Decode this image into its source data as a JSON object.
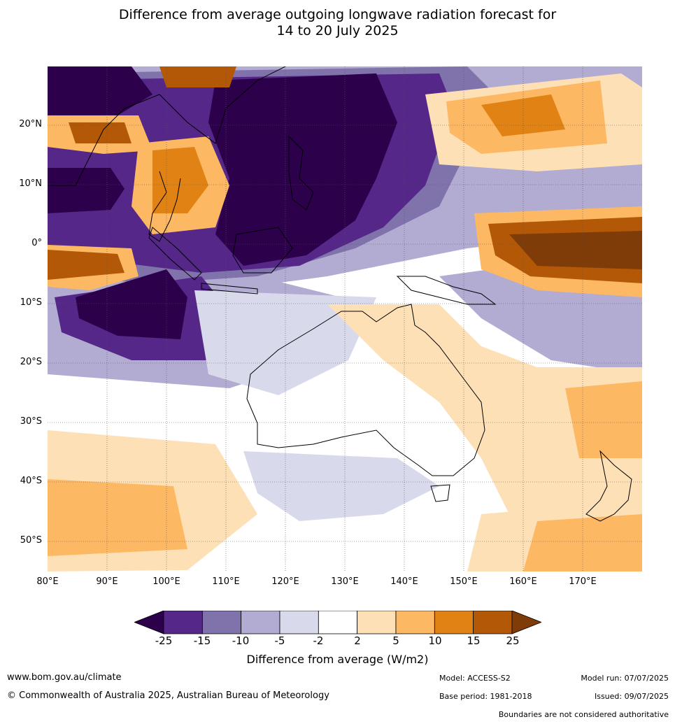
{
  "title": {
    "line1": "Difference from average outgoing longwave radiation forecast for",
    "line2": "14 to 20 July 2025"
  },
  "map": {
    "lat_labels": [
      "20°N",
      "10°N",
      "0°",
      "10°S",
      "20°S",
      "30°S",
      "40°S",
      "50°S"
    ],
    "lon_labels": [
      "80°E",
      "90°E",
      "100°E",
      "110°E",
      "120°E",
      "130°E",
      "140°E",
      "150°E",
      "160°E",
      "170°E"
    ]
  },
  "colorbar": {
    "ticks": [
      "-25",
      "-15",
      "-10",
      "-5",
      "-2",
      "2",
      "5",
      "10",
      "15",
      "25"
    ],
    "colors": [
      "#2d004b",
      "#542788",
      "#8073ac",
      "#b2abd2",
      "#d8daeb",
      "#ffffff",
      "#fee0b6",
      "#fdb863",
      "#e08214",
      "#b35806",
      "#7f3b08"
    ],
    "label": "Difference from average (W/m2)"
  },
  "footer": {
    "url": "www.bom.gov.au/climate",
    "copyright": "© Commonwealth of Australia 2025, Australian Bureau of Meteorology",
    "model": "Model: ACCESS-S2",
    "base_period": "Base period: 1981-2018",
    "model_run": "Model run: 07/07/2025",
    "issued": "Issued: 09/07/2025",
    "disclaimer": "Boundaries are not considered authoritative"
  }
}
